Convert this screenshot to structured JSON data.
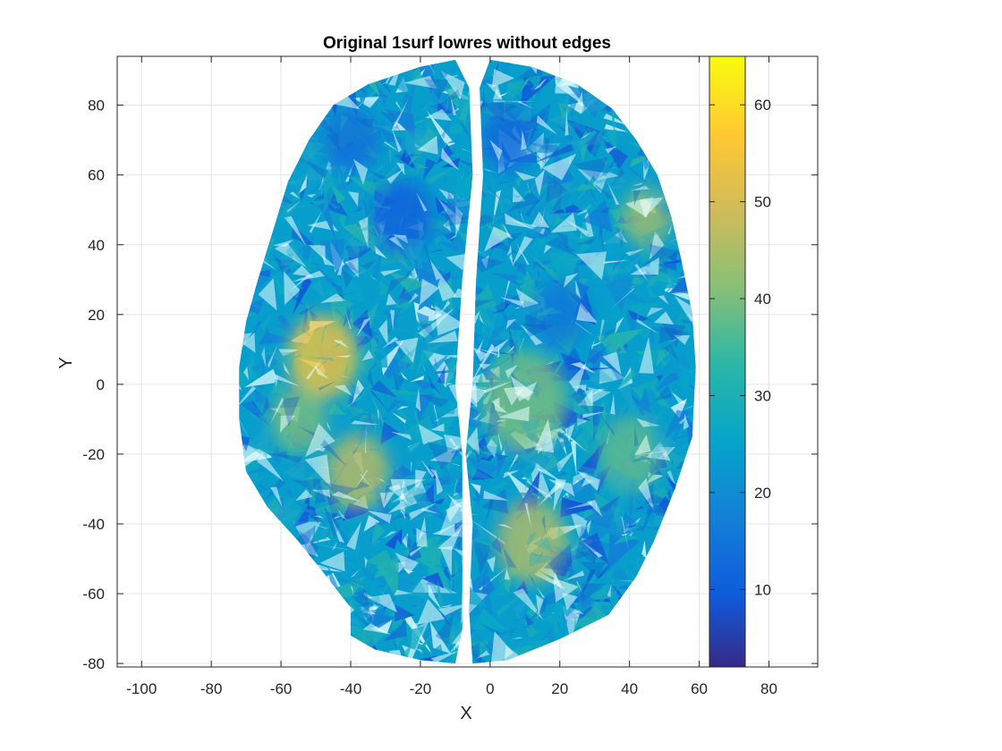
{
  "chart_data": {
    "type": "heatmap",
    "title": "Original 1surf lowres without edges",
    "xlabel": "X",
    "ylabel": "Y",
    "xlim": [
      -107,
      94
    ],
    "ylim": [
      -81,
      94
    ],
    "xticks": [
      "-100",
      "-80",
      "-60",
      "-40",
      "-20",
      "0",
      "20",
      "40",
      "60",
      "80"
    ],
    "yticks": [
      "-80",
      "-60",
      "-40",
      "-20",
      "0",
      "20",
      "40",
      "60",
      "80"
    ],
    "grid": true,
    "colorbar": {
      "limits": [
        2,
        65
      ],
      "ticks": [
        "10",
        "20",
        "30",
        "40",
        "50",
        "60"
      ],
      "colormap": "parula"
    },
    "surface": {
      "description_free": true,
      "hemispheres": [
        {
          "side": "left",
          "outline": [
            [
              -10,
              93
            ],
            [
              -20,
              91
            ],
            [
              -35,
              86
            ],
            [
              -45,
              80
            ],
            [
              -52,
              70
            ],
            [
              -58,
              58
            ],
            [
              -62,
              45
            ],
            [
              -66,
              32
            ],
            [
              -70,
              18
            ],
            [
              -72,
              5
            ],
            [
              -72,
              -10
            ],
            [
              -70,
              -25
            ],
            [
              -64,
              -35
            ],
            [
              -55,
              -45
            ],
            [
              -47,
              -55
            ],
            [
              -40,
              -64
            ],
            [
              -40,
              -72
            ],
            [
              -33,
              -76
            ],
            [
              -20,
              -79
            ],
            [
              -10,
              -80
            ],
            [
              -8,
              -70
            ],
            [
              -8,
              -40
            ],
            [
              -8,
              -20
            ],
            [
              -10,
              0
            ],
            [
              -8,
              30
            ],
            [
              -5,
              60
            ],
            [
              -6,
              85
            ]
          ]
        },
        {
          "side": "right",
          "outline": [
            [
              0,
              93
            ],
            [
              12,
              91
            ],
            [
              25,
              86
            ],
            [
              35,
              79
            ],
            [
              42,
              70
            ],
            [
              48,
              60
            ],
            [
              52,
              48
            ],
            [
              55,
              35
            ],
            [
              58,
              20
            ],
            [
              59,
              5
            ],
            [
              58,
              -15
            ],
            [
              53,
              -30
            ],
            [
              47,
              -45
            ],
            [
              42,
              -55
            ],
            [
              34,
              -66
            ],
            [
              20,
              -73
            ],
            [
              5,
              -79
            ],
            [
              -5,
              -80
            ],
            [
              -6,
              -65
            ],
            [
              -5,
              -40
            ],
            [
              -7,
              -20
            ],
            [
              -5,
              0
            ],
            [
              -4,
              30
            ],
            [
              -2,
              60
            ],
            [
              -3,
              85
            ]
          ]
        }
      ],
      "hotspots": [
        {
          "x": -48,
          "y": 8,
          "value": 55,
          "r": 10
        },
        {
          "x": -38,
          "y": -25,
          "value": 47,
          "r": 9
        },
        {
          "x": 12,
          "y": -45,
          "value": 46,
          "r": 10
        },
        {
          "x": 45,
          "y": 48,
          "value": 44,
          "r": 7
        },
        {
          "x": 10,
          "y": -5,
          "value": 40,
          "r": 12
        },
        {
          "x": -55,
          "y": -10,
          "value": 40,
          "r": 8
        },
        {
          "x": 40,
          "y": -20,
          "value": 38,
          "r": 9
        }
      ],
      "coldspots": [
        {
          "x": -25,
          "y": 48,
          "value": 10,
          "r": 9
        },
        {
          "x": 5,
          "y": 70,
          "value": 12,
          "r": 8
        },
        {
          "x": -40,
          "y": 70,
          "value": 14,
          "r": 8
        },
        {
          "x": 20,
          "y": 20,
          "value": 15,
          "r": 8
        }
      ]
    }
  }
}
